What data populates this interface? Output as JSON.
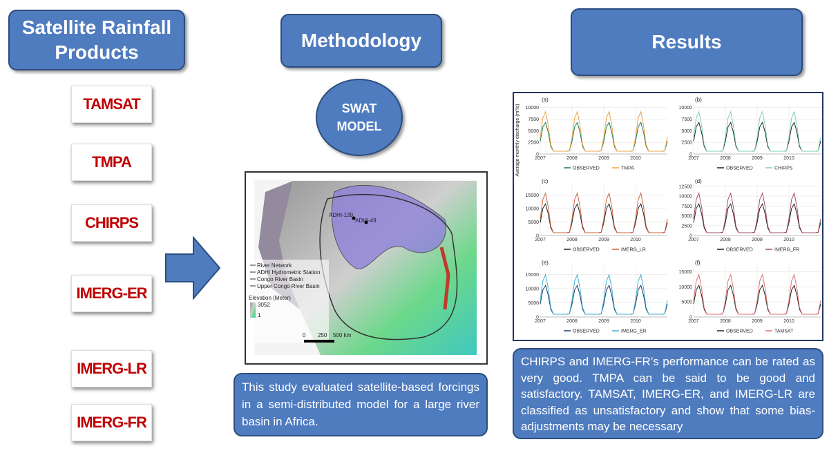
{
  "left": {
    "title": "Satellite Rainfall Products",
    "products": [
      "TAMSAT",
      "TMPA",
      "CHIRPS",
      "IMERG-ER",
      "IMERG-LR",
      "IMERG-FR"
    ]
  },
  "middle": {
    "title": "Methodology",
    "model": "SWAT MODEL",
    "map": {
      "stations": [
        "ADHI-139",
        "ADHI-49"
      ],
      "legend": [
        "River Network",
        "ADHI Hydrometric Station",
        "Congo River Basin",
        "Upper Congo River Basin"
      ],
      "elevation_title": "Elevation (Meter)",
      "elevation_max": "3052",
      "elevation_min": "1",
      "scale": [
        "0",
        "250",
        "500 km"
      ]
    },
    "summary": "This study evaluated satellite-based forcings in a semi-distributed model for a large river basin in Africa."
  },
  "right": {
    "title": "Results",
    "ylabel": "Average monthly discharge (m³/s)",
    "panels": [
      {
        "label": "(a)",
        "ylim": [
          0,
          11000
        ],
        "yticks": [
          0,
          2500,
          5000,
          7500,
          10000
        ],
        "xlim": [
          2007,
          2011
        ],
        "xticks": [
          2007,
          2008,
          2009,
          2010
        ],
        "legend": [
          "OBSERVED",
          "TMPA"
        ],
        "colors": [
          "#1a7a4a",
          "#f0a040"
        ]
      },
      {
        "label": "(b)",
        "ylim": [
          0,
          11000
        ],
        "yticks": [
          0,
          2500,
          5000,
          7500,
          10000
        ],
        "xlim": [
          2007,
          2011
        ],
        "xticks": [
          2007,
          2008,
          2009,
          2010
        ],
        "legend": [
          "OBSERVED",
          "CHIRPS"
        ],
        "colors": [
          "#222222",
          "#7fd0b0"
        ]
      },
      {
        "label": "(c)",
        "ylim": [
          0,
          19000
        ],
        "yticks": [
          0,
          5000,
          10000,
          15000
        ],
        "xlim": [
          2007,
          2011
        ],
        "xticks": [
          2007,
          2008,
          2009,
          2010
        ],
        "legend": [
          "OBSERVED",
          "IMERG_LR"
        ],
        "colors": [
          "#222222",
          "#d06040"
        ]
      },
      {
        "label": "(d)",
        "ylim": [
          0,
          13000
        ],
        "yticks": [
          0,
          2500,
          5000,
          7500,
          10000,
          12500
        ],
        "xlim": [
          2007,
          2011
        ],
        "xticks": [
          2007,
          2008,
          2009,
          2010
        ],
        "legend": [
          "OBSERVED",
          "IMERG_FR"
        ],
        "colors": [
          "#222222",
          "#a05060"
        ]
      },
      {
        "label": "(e)",
        "ylim": [
          0,
          18000
        ],
        "yticks": [
          0,
          5000,
          10000,
          15000
        ],
        "xlim": [
          2007,
          2011
        ],
        "xticks": [
          2007,
          2008,
          2009,
          2010
        ],
        "legend": [
          "OBSERVED",
          "IMERG_ER"
        ],
        "colors": [
          "#1a3a6a",
          "#40b0d0"
        ]
      },
      {
        "label": "(f)",
        "ylim": [
          0,
          17000
        ],
        "yticks": [
          0,
          5000,
          10000,
          15000
        ],
        "xlim": [
          2007,
          2011
        ],
        "xticks": [
          2007,
          2008,
          2009,
          2010
        ],
        "legend": [
          "OBSERVED",
          "TAMSAT"
        ],
        "colors": [
          "#222222",
          "#e07070"
        ]
      }
    ],
    "summary": "CHIRPS and IMERG-FR’s performance can be rated as very good. TMPA can be said to be good and satisfactory. TAMSAT, IMERG-ER, and IMERG-LR are classified as unsatisfactory and show that some bias-adjustments may be necessary"
  }
}
